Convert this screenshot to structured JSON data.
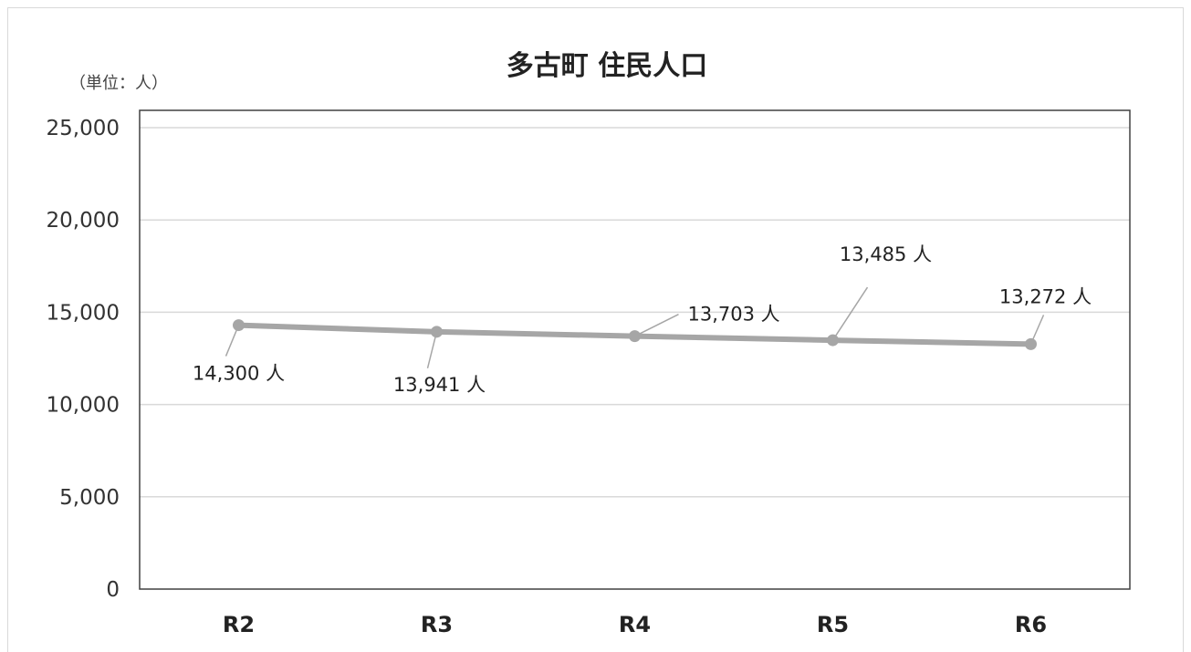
{
  "chart_data": {
    "type": "line",
    "title": "多古町 住民人口",
    "unit_label": "（単位：人）",
    "categories": [
      "R2",
      "R3",
      "R4",
      "R5",
      "R6"
    ],
    "series": [
      {
        "values": [
          14300,
          13941,
          13703,
          13485,
          13272
        ],
        "color": "#a6a6a6"
      }
    ],
    "data_labels": [
      "14,300 人",
      "13,941 人",
      "13,703 人",
      "13,485 人",
      "13,272 人"
    ],
    "y_ticks": [
      "0",
      "5,000",
      "10,000",
      "15,000",
      "20,000",
      "25,000"
    ],
    "ylim": [
      0,
      25000
    ],
    "grid": true,
    "legend": "none"
  }
}
